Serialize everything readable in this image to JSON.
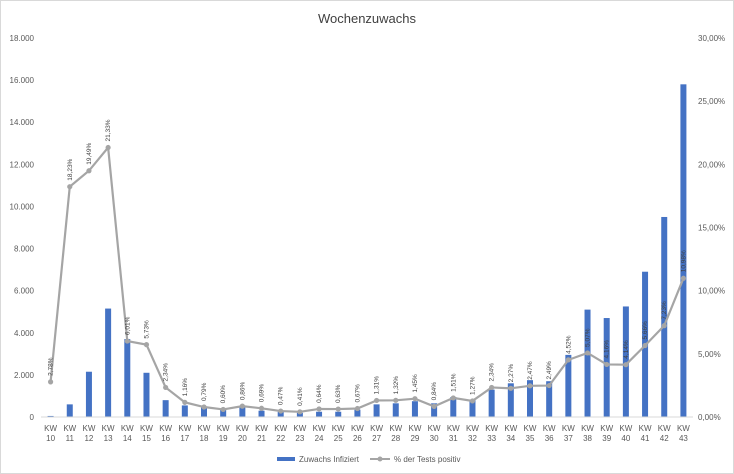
{
  "chart_data": {
    "type": "bar",
    "title": "Wochenzuwachs",
    "categories": [
      "KW 10",
      "KW 11",
      "KW 12",
      "KW 13",
      "KW 14",
      "KW 15",
      "KW 16",
      "KW 17",
      "KW 18",
      "KW 19",
      "KW 20",
      "KW 21",
      "KW 22",
      "KW 23",
      "KW 24",
      "KW 25",
      "KW 26",
      "KW 27",
      "KW 28",
      "KW 29",
      "KW 30",
      "KW 31",
      "KW 32",
      "KW 33",
      "KW 34",
      "KW 35",
      "KW 36",
      "KW 37",
      "KW 38",
      "KW 39",
      "KW 40",
      "KW 41",
      "KW 42",
      "KW 43"
    ],
    "series": [
      {
        "name": "Zuwachs Infiziert",
        "type": "bar",
        "axis": "left",
        "color": "#4472c4",
        "values": [
          50,
          600,
          2150,
          5150,
          3700,
          2100,
          800,
          550,
          450,
          350,
          450,
          300,
          250,
          200,
          250,
          250,
          350,
          600,
          650,
          750,
          650,
          950,
          800,
          1300,
          1600,
          1750,
          1700,
          2950,
          5100,
          4700,
          5250,
          6900,
          9500,
          15800
        ]
      },
      {
        "name": "% der Tests positiv",
        "type": "line",
        "axis": "right",
        "color": "#a5a5a5",
        "values": [
          2.78,
          18.23,
          19.49,
          21.33,
          6.01,
          5.73,
          2.34,
          1.16,
          0.79,
          0.6,
          0.86,
          0.69,
          0.47,
          0.41,
          0.64,
          0.63,
          0.67,
          1.31,
          1.32,
          1.45,
          0.84,
          1.51,
          1.27,
          2.34,
          2.27,
          2.47,
          2.49,
          4.52,
          5.07,
          4.16,
          4.14,
          5.66,
          7.23,
          10.98
        ],
        "labels": [
          "2,78%",
          "18,23%",
          "19,49%",
          "21,33%",
          "6,01%",
          "5,73%",
          "2,34%",
          "1,16%",
          "0,79%",
          "0,60%",
          "0,86%",
          "0,69%",
          "0,47%",
          "0,41%",
          "0,64%",
          "0,63%",
          "0,67%",
          "1,31%",
          "1,32%",
          "1,45%",
          "0,84%",
          "1,51%",
          "1,27%",
          "2,34%",
          "2,27%",
          "2,47%",
          "2,49%",
          "4,52%",
          "5,07%",
          "4,16%",
          "4,14%",
          "5,66%",
          "7,23%",
          "10,98%"
        ]
      }
    ],
    "y_left": {
      "min": 0,
      "max": 18000,
      "step": 2000,
      "tick_labels": [
        "0",
        "2.000",
        "4.000",
        "6.000",
        "8.000",
        "10.000",
        "12.000",
        "14.000",
        "16.000",
        "18.000"
      ]
    },
    "y_right": {
      "min": 0,
      "max": 30,
      "step": 5,
      "tick_labels": [
        "0,00%",
        "5,00%",
        "10,00%",
        "15,00%",
        "20,00%",
        "25,00%",
        "30,00%"
      ]
    },
    "grid": false,
    "legend_position": "bottom"
  }
}
